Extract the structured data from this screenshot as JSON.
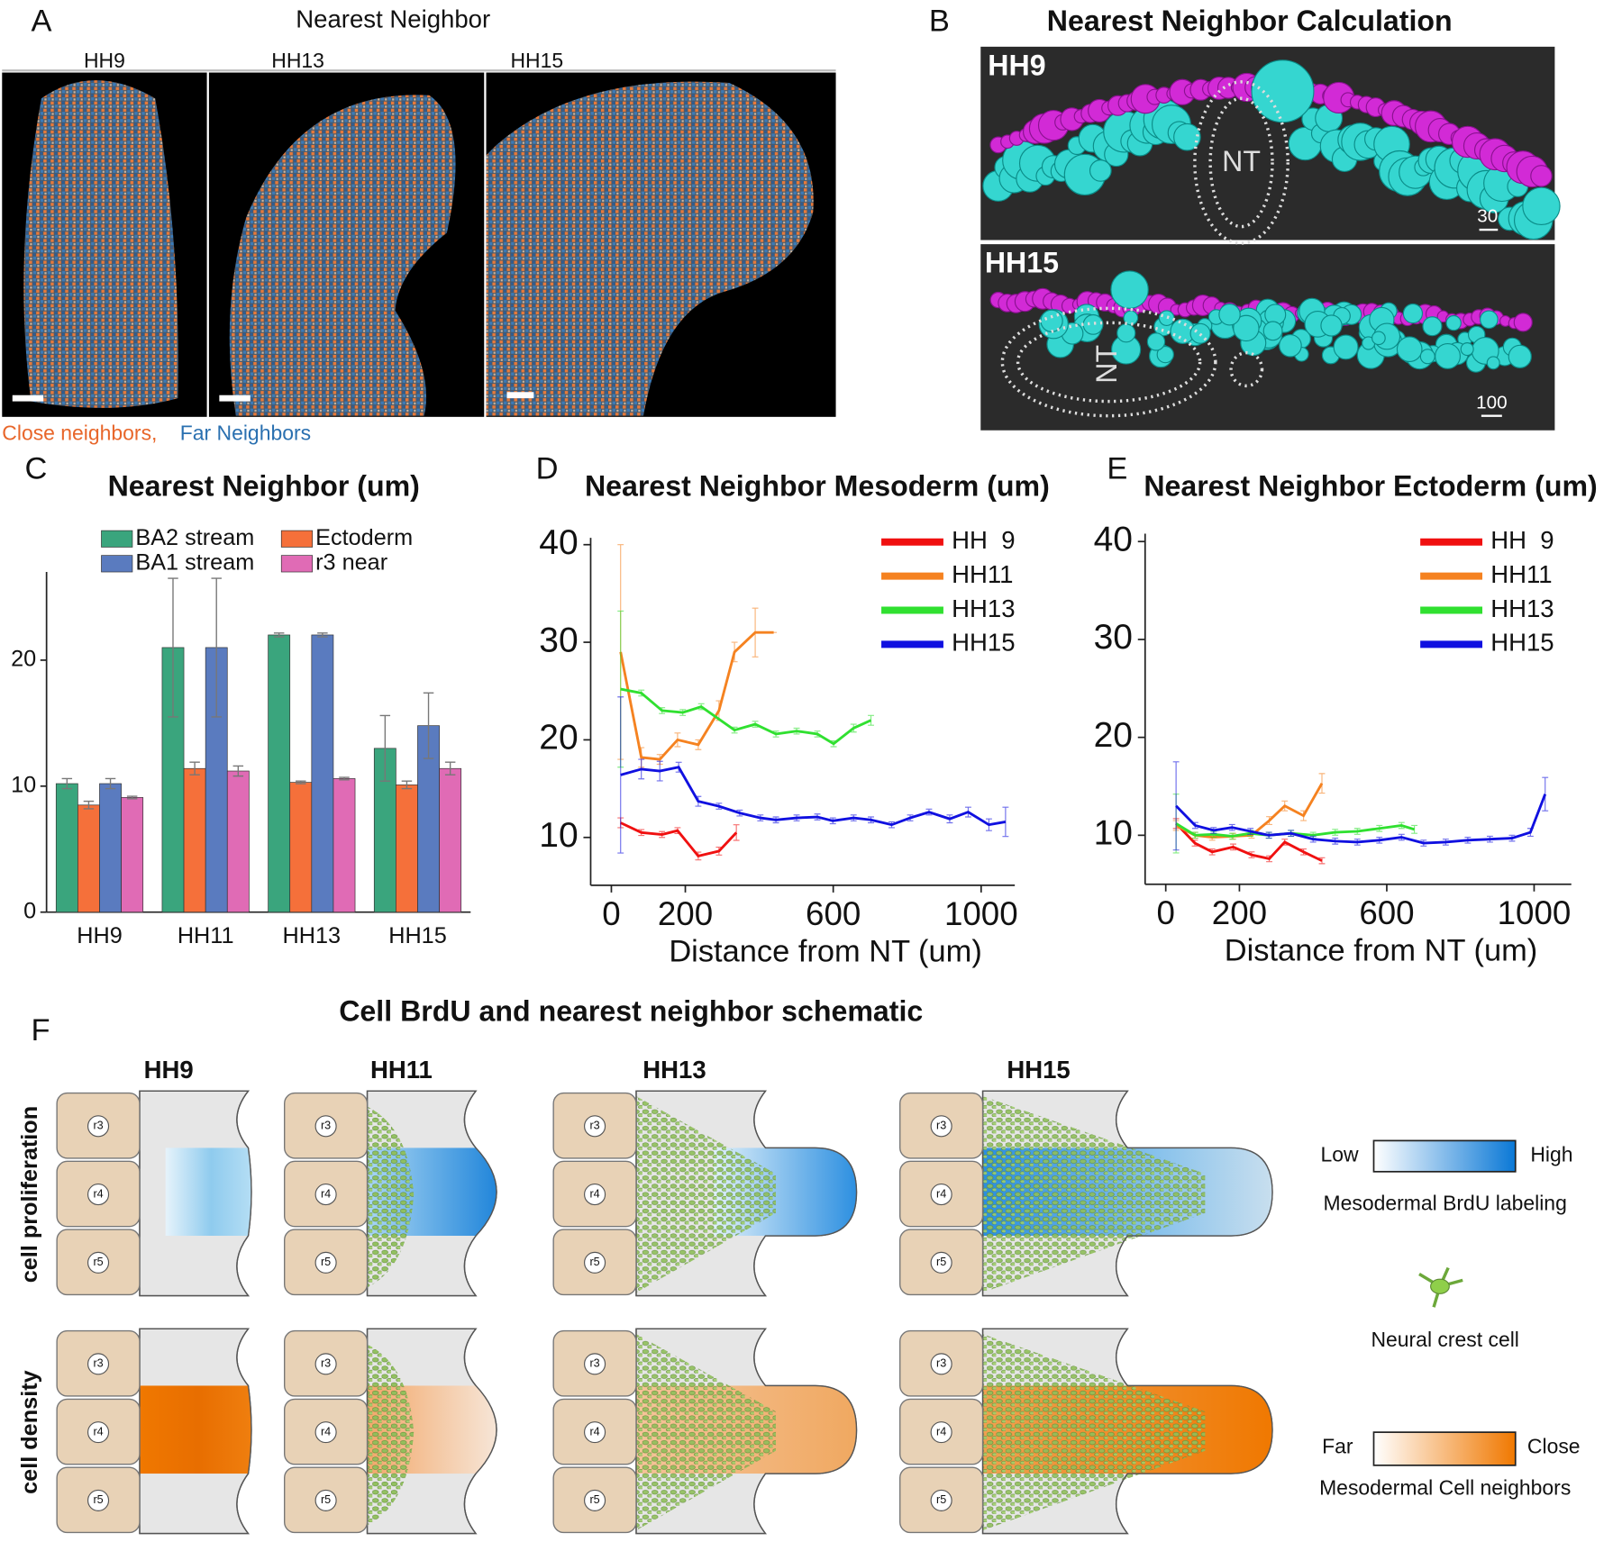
{
  "panel_a": {
    "label": "A",
    "title": "Nearest Neighbor",
    "stages": [
      "HH9",
      "HH13",
      "HH15"
    ],
    "legend_close": "Close neighbors,",
    "legend_far": "Far Neighbors"
  },
  "panel_b": {
    "label": "B",
    "title": "Nearest Neighbor Calculation",
    "views": [
      {
        "stage": "HH9",
        "nt": "NT",
        "scale": "30"
      },
      {
        "stage": "HH15",
        "nt": "NT",
        "scale": "100"
      }
    ]
  },
  "chart_data": [
    {
      "type": "bar",
      "label": "C",
      "title": "Nearest Neighbor (um)",
      "categories": [
        "HH9",
        "HH11",
        "HH13",
        "HH15"
      ],
      "series": [
        {
          "name": "BA2 stream",
          "color": "#3aa57d",
          "values": [
            10.2,
            21,
            22,
            13
          ],
          "errors": [
            0.4,
            5.5,
            0.15,
            2.6
          ]
        },
        {
          "name": "Ectoderm",
          "color": "#f5703a",
          "values": [
            8.5,
            11.4,
            10.3,
            10.1
          ],
          "errors": [
            0.3,
            0.5,
            0.1,
            0.3
          ]
        },
        {
          "name": "BA1 stream",
          "color": "#5a7bbf",
          "values": [
            10.2,
            21,
            22,
            14.8
          ],
          "errors": [
            0.4,
            5.5,
            0.15,
            2.6
          ]
        },
        {
          "name": "r3 near",
          "color": "#e06bb5",
          "values": [
            9.1,
            11.2,
            10.6,
            11.4
          ],
          "errors": [
            0.1,
            0.4,
            0.1,
            0.5
          ]
        }
      ],
      "ylim": [
        0,
        27
      ],
      "yticks": [
        0,
        10,
        20
      ]
    },
    {
      "type": "line",
      "label": "D",
      "title": "Nearest Neighbor Mesoderm (um)",
      "x_label": "Distance from NT (um)",
      "series": [
        {
          "name": "HH  9",
          "color": "#f01010",
          "x": [
            25,
            81,
            137,
            179,
            235,
            291,
            338
          ],
          "values": [
            11.5,
            10.5,
            10.3,
            10.7,
            8.1,
            8.6,
            10.5
          ],
          "errors": [
            0.5,
            0.3,
            0.3,
            0.3,
            0.4,
            0.4,
            0.8
          ]
        },
        {
          "name": "HH11",
          "color": "#f58220",
          "x": [
            25,
            81,
            131,
            179,
            235,
            291,
            333,
            389,
            439
          ],
          "values": [
            29,
            18.2,
            18,
            20,
            19.5,
            23,
            29,
            31,
            31
          ],
          "errors": [
            11,
            1,
            0.5,
            0.7,
            0.5,
            1,
            1,
            2.5,
            0
          ]
        },
        {
          "name": "HH13",
          "color": "#30e030",
          "x": [
            25,
            81,
            137,
            193,
            243,
            333,
            389,
            445,
            501,
            557,
            601,
            655,
            702
          ],
          "values": [
            25.2,
            24.8,
            23,
            22.8,
            23.4,
            21,
            21.6,
            20.6,
            20.9,
            20.6,
            19.6,
            21.2,
            22
          ],
          "errors": [
            8,
            0.3,
            0.3,
            0.3,
            0.3,
            0.3,
            0.3,
            0.3,
            0.3,
            0.3,
            0.3,
            0.4,
            0.5
          ]
        },
        {
          "name": "HH15",
          "color": "#1010e0",
          "x": [
            25,
            81,
            131,
            182,
            235,
            291,
            347,
            403,
            445,
            501,
            557,
            599,
            655,
            702,
            758,
            808,
            859,
            915,
            965,
            1021,
            1066
          ],
          "values": [
            16.4,
            17,
            16.8,
            17.2,
            13.7,
            13.2,
            12.5,
            12,
            11.8,
            12,
            12.1,
            11.7,
            12,
            11.8,
            11.3,
            12,
            12.6,
            11.9,
            12.6,
            11.3,
            11.6
          ],
          "errors": [
            8,
            1,
            1,
            0.5,
            0.5,
            0.3,
            0.3,
            0.3,
            0.3,
            0.3,
            0.3,
            0.3,
            0.3,
            0.3,
            0.3,
            0.3,
            0.3,
            0.4,
            0.5,
            0.6,
            1.5
          ]
        }
      ],
      "xlim": [
        -56,
        1091
      ],
      "xticks": [
        0,
        200,
        600,
        1000
      ],
      "ylim": [
        5.1,
        40.7
      ],
      "yticks": [
        10,
        20,
        30,
        40
      ]
    },
    {
      "type": "line",
      "label": "E",
      "title": "Nearest Neighbor Ectoderm (um)",
      "x_label": "Distance from NT (um)",
      "series": [
        {
          "name": "HH  9",
          "color": "#f01010",
          "x": [
            28,
            79,
            126,
            183,
            233,
            281,
            323,
            374,
            424
          ],
          "values": [
            11.2,
            9.2,
            8.3,
            8.8,
            8,
            7.6,
            9.3,
            8.3,
            7.4
          ],
          "errors": [
            0.5,
            0.3,
            0.3,
            0.3,
            0.3,
            0.3,
            0.3,
            0.3,
            0.3
          ]
        },
        {
          "name": "HH11",
          "color": "#f58220",
          "x": [
            28,
            79,
            126,
            183,
            233,
            281,
            323,
            374,
            424
          ],
          "values": [
            11,
            10,
            9.8,
            9.9,
            10,
            11.5,
            13,
            12,
            15.3
          ],
          "errors": [
            0.5,
            0.3,
            0.3,
            0.3,
            0.3,
            0.4,
            0.5,
            0.5,
            1
          ]
        },
        {
          "name": "HH13",
          "color": "#30e030",
          "x": [
            28,
            80,
            130,
            180,
            230,
            280,
            340,
            400,
            460,
            520,
            580,
            640,
            675
          ],
          "values": [
            11.2,
            10,
            10.1,
            9.9,
            10.2,
            10,
            10.2,
            10,
            10.3,
            10.4,
            10.7,
            11,
            10.6
          ],
          "errors": [
            3,
            0.3,
            0.3,
            0.3,
            0.3,
            0.3,
            0.3,
            0.3,
            0.3,
            0.3,
            0.3,
            0.3,
            0.4
          ]
        },
        {
          "name": "HH15",
          "color": "#1010e0",
          "x": [
            28,
            80,
            130,
            180,
            230,
            280,
            340,
            400,
            460,
            520,
            580,
            640,
            700,
            760,
            820,
            880,
            940,
            990,
            1030
          ],
          "values": [
            13,
            11,
            10.5,
            10.8,
            10.4,
            10,
            10.2,
            9.6,
            9.4,
            9.3,
            9.5,
            9.8,
            9.2,
            9.3,
            9.5,
            9.6,
            9.7,
            10.3,
            14.2
          ],
          "errors": [
            4.5,
            0.3,
            0.3,
            0.3,
            0.3,
            0.3,
            0.3,
            0.3,
            0.3,
            0.3,
            0.3,
            0.3,
            0.3,
            0.3,
            0.3,
            0.3,
            0.3,
            0.4,
            1.7
          ]
        }
      ],
      "xlim": [
        -56,
        1101
      ],
      "xticks": [
        0,
        200,
        600,
        1000
      ],
      "ylim": [
        5.0,
        40.8
      ],
      "yticks": [
        10,
        20,
        30,
        40
      ]
    }
  ],
  "panel_f": {
    "label": "F",
    "title": "Cell BrdU and nearest neighbor schematic",
    "stages": [
      "HH9",
      "HH11",
      "HH13",
      "HH15"
    ],
    "rows": [
      "cell proliferation",
      "cell density"
    ],
    "rhombomeres": [
      "r3",
      "r4",
      "r5"
    ],
    "legend": {
      "low": "Low",
      "high": "High",
      "brdu": "Mesodermal BrdU labeling",
      "cell": "Neural crest cell",
      "far": "Far",
      "close": "Close",
      "neighbors": "Mesodermal Cell neighbors"
    }
  }
}
